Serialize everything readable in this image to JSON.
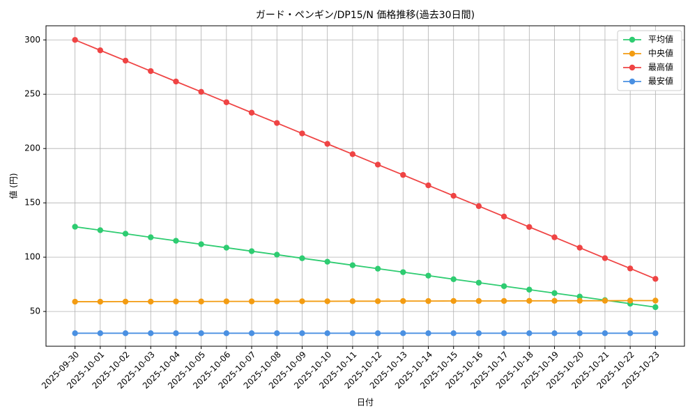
{
  "chart_data": {
    "type": "line",
    "title": "ガード・ペンギン/DP15/N 価格推移(過去30日間)",
    "x_label": "日付",
    "y_label": "値 (円)",
    "categories": [
      "2025-09-30",
      "2025-10-01",
      "2025-10-02",
      "2025-10-03",
      "2025-10-04",
      "2025-10-05",
      "2025-10-06",
      "2025-10-07",
      "2025-10-08",
      "2025-10-09",
      "2025-10-10",
      "2025-10-11",
      "2025-10-12",
      "2025-10-13",
      "2025-10-14",
      "2025-10-15",
      "2025-10-16",
      "2025-10-17",
      "2025-10-18",
      "2025-10-19",
      "2025-10-20",
      "2025-10-21",
      "2025-10-22",
      "2025-10-23"
    ],
    "series": [
      {
        "name": "平均値",
        "color": "#2ecc71",
        "values": [
          128,
          124.8,
          121.6,
          118.3,
          115.1,
          111.9,
          108.7,
          105.5,
          102.3,
          99.0,
          95.8,
          92.6,
          89.4,
          86.2,
          83.0,
          79.7,
          76.5,
          73.3,
          70.1,
          66.9,
          63.7,
          60.4,
          57.2,
          54.0
        ]
      },
      {
        "name": "中央値",
        "color": "#f39c12",
        "values": [
          59.0,
          59.0,
          59.1,
          59.1,
          59.2,
          59.2,
          59.3,
          59.3,
          59.3,
          59.4,
          59.4,
          59.5,
          59.5,
          59.6,
          59.6,
          59.7,
          59.7,
          59.7,
          59.8,
          59.8,
          59.9,
          59.9,
          60.0,
          60.0
        ]
      },
      {
        "name": "最高値",
        "color": "#ef4444",
        "values": [
          300,
          290.4,
          280.9,
          271.3,
          261.7,
          252.2,
          242.6,
          233.0,
          223.5,
          213.9,
          204.3,
          194.8,
          185.2,
          175.7,
          166.1,
          156.5,
          147.0,
          137.4,
          127.8,
          118.3,
          108.7,
          99.1,
          89.6,
          80.0
        ]
      },
      {
        "name": "最安値",
        "color": "#4a90e2",
        "values": [
          30,
          30,
          30,
          30,
          30,
          30,
          30,
          30,
          30,
          30,
          30,
          30,
          30,
          30,
          30,
          30,
          30,
          30,
          30,
          30,
          30,
          30,
          30,
          30
        ]
      }
    ],
    "ylim": [
      18,
      313
    ],
    "yticks": [
      50,
      100,
      150,
      200,
      250,
      300
    ],
    "grid": true,
    "legend": "upper right"
  }
}
